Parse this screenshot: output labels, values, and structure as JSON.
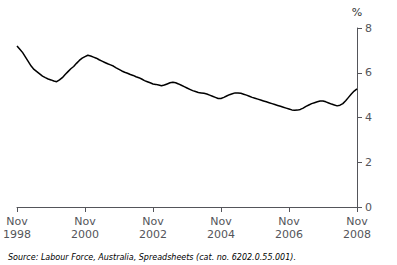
{
  "chart_data": {
    "type": "line",
    "ylabel": "%",
    "source": "Source: Labour Force, Australia, Spreadsheets (cat. no. 6202.0.55.001).",
    "color": "#000000",
    "ylim": [
      0,
      8
    ],
    "yticks": [
      0,
      2,
      4,
      6,
      8
    ],
    "grid": false,
    "categories": [
      "Nov\n1998",
      null,
      null,
      null,
      null,
      null,
      null,
      null,
      null,
      null,
      null,
      null,
      null,
      null,
      null,
      null,
      null,
      null,
      null,
      null,
      null,
      null,
      null,
      null,
      "Nov\n2000",
      null,
      null,
      null,
      null,
      null,
      null,
      null,
      null,
      null,
      null,
      null,
      null,
      null,
      null,
      null,
      null,
      null,
      null,
      null,
      null,
      null,
      null,
      null,
      "Nov\n2002",
      null,
      null,
      null,
      null,
      null,
      null,
      null,
      null,
      null,
      null,
      null,
      null,
      null,
      null,
      null,
      null,
      null,
      null,
      null,
      null,
      null,
      null,
      null,
      "Nov\n2004",
      null,
      null,
      null,
      null,
      null,
      null,
      null,
      null,
      null,
      null,
      null,
      null,
      null,
      null,
      null,
      null,
      null,
      null,
      null,
      null,
      null,
      null,
      null,
      "Nov\n2006",
      null,
      null,
      null,
      null,
      null,
      null,
      null,
      null,
      null,
      null,
      null,
      null,
      null,
      null,
      null,
      null,
      null,
      null,
      null,
      null,
      null,
      null,
      null,
      "Nov\n2008"
    ],
    "values": [
      7.2,
      7.05,
      6.9,
      6.7,
      6.5,
      6.3,
      6.15,
      6.05,
      5.95,
      5.85,
      5.78,
      5.72,
      5.68,
      5.63,
      5.6,
      5.68,
      5.78,
      5.92,
      6.05,
      6.18,
      6.28,
      6.42,
      6.55,
      6.65,
      6.72,
      6.78,
      6.75,
      6.7,
      6.65,
      6.58,
      6.52,
      6.46,
      6.4,
      6.35,
      6.3,
      6.22,
      6.15,
      6.08,
      6.02,
      5.98,
      5.92,
      5.88,
      5.82,
      5.78,
      5.72,
      5.65,
      5.6,
      5.55,
      5.5,
      5.48,
      5.45,
      5.42,
      5.45,
      5.5,
      5.55,
      5.58,
      5.55,
      5.5,
      5.44,
      5.38,
      5.32,
      5.26,
      5.2,
      5.16,
      5.12,
      5.1,
      5.08,
      5.05,
      5.0,
      4.95,
      4.9,
      4.85,
      4.85,
      4.9,
      4.96,
      5.02,
      5.06,
      5.1,
      5.1,
      5.08,
      5.04,
      5.0,
      4.95,
      4.9,
      4.86,
      4.82,
      4.78,
      4.74,
      4.7,
      4.66,
      4.62,
      4.58,
      4.54,
      4.5,
      4.46,
      4.42,
      4.38,
      4.34,
      4.32,
      4.33,
      4.36,
      4.42,
      4.5,
      4.56,
      4.62,
      4.66,
      4.7,
      4.74,
      4.74,
      4.7,
      4.65,
      4.6,
      4.56,
      4.52,
      4.55,
      4.62,
      4.75,
      4.9,
      5.05,
      5.18,
      5.28
    ]
  }
}
